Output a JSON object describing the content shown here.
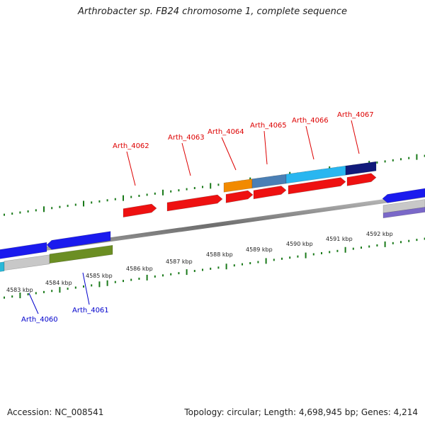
{
  "title": "Arthrobacter sp. FB24 chromosome 1, complete sequence",
  "footer": {
    "accession": "Accession: NC_008541",
    "summary": "Topology: circular; Length: 4,698,945 bp; Genes: 4,214"
  },
  "colors": {
    "backbone": "#8a8a8a",
    "tick": "#1a7a1a",
    "label_forward": "#dd0000",
    "label_reverse": "#0000cc"
  },
  "scale_labels": [
    "4583 kbp",
    "4584 kbp",
    "4585 kbp",
    "4586 kbp",
    "4587 kbp",
    "4588 kbp",
    "4589 kbp",
    "4590 kbp",
    "4591 kbp",
    "4592 kbp"
  ],
  "genes_forward": [
    {
      "label": "Arth_4062",
      "color": "#ee1111"
    },
    {
      "label": "Arth_4063",
      "color": "#ee1111"
    },
    {
      "label": "Arth_4064",
      "color": "#ee1111"
    },
    {
      "label": "Arth_4065",
      "color": "#ee1111"
    },
    {
      "label": "Arth_4066",
      "color": "#ee1111"
    },
    {
      "label": "Arth_4067",
      "color": "#ee1111"
    }
  ],
  "genes_reverse": [
    {
      "label": "Arth_4060",
      "color": "#1a1aee"
    },
    {
      "label": "Arth_4061",
      "color": "#1a1aee"
    }
  ]
}
